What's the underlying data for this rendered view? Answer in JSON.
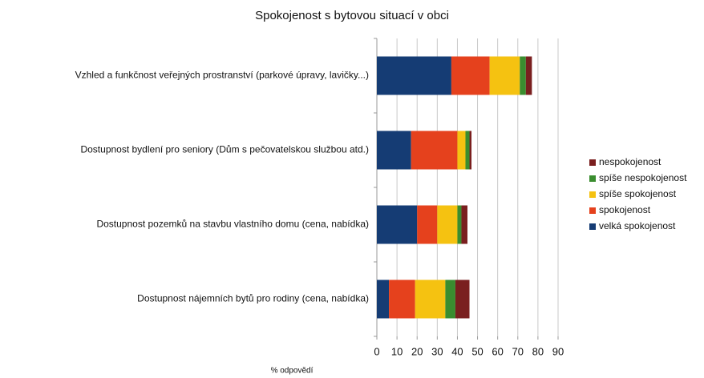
{
  "chart_data": {
    "type": "stacked-barh",
    "title": "Spokojenost s bytovou situací v obci",
    "x_label": "% odpovědí",
    "categories": [
      "Vzhled a funkčnost veřejných prostranství  (parkové úpravy, lavičky...)",
      "Dostupnost bydlení pro seniory (Dům s pečovatelskou službou atd.)",
      "Dostupnost pozemků na stavbu vlastního domu (cena, nabídka)",
      "Dostupnost nájemních bytů pro rodiny (cena, nabídka)"
    ],
    "series": [
      {
        "name": "velká spokojenost",
        "color": "#153c74",
        "values": [
          37,
          17,
          20,
          6
        ]
      },
      {
        "name": "spokojenost",
        "color": "#e5411d",
        "values": [
          19,
          23,
          10,
          13
        ]
      },
      {
        "name": "spíše spokojenost",
        "color": "#f5c211",
        "values": [
          15,
          4,
          10,
          15
        ]
      },
      {
        "name": "spíše nespokojenost",
        "color": "#3a8d2f",
        "values": [
          3,
          2,
          2,
          5
        ]
      },
      {
        "name": "nespokojenost",
        "color": "#7a1f1f",
        "values": [
          3,
          1,
          3,
          7
        ]
      }
    ],
    "xlim": [
      0,
      90
    ],
    "xticks": [
      0,
      10,
      20,
      30,
      40,
      50,
      60,
      70,
      80,
      90
    ],
    "grid": true,
    "legend": "right"
  }
}
